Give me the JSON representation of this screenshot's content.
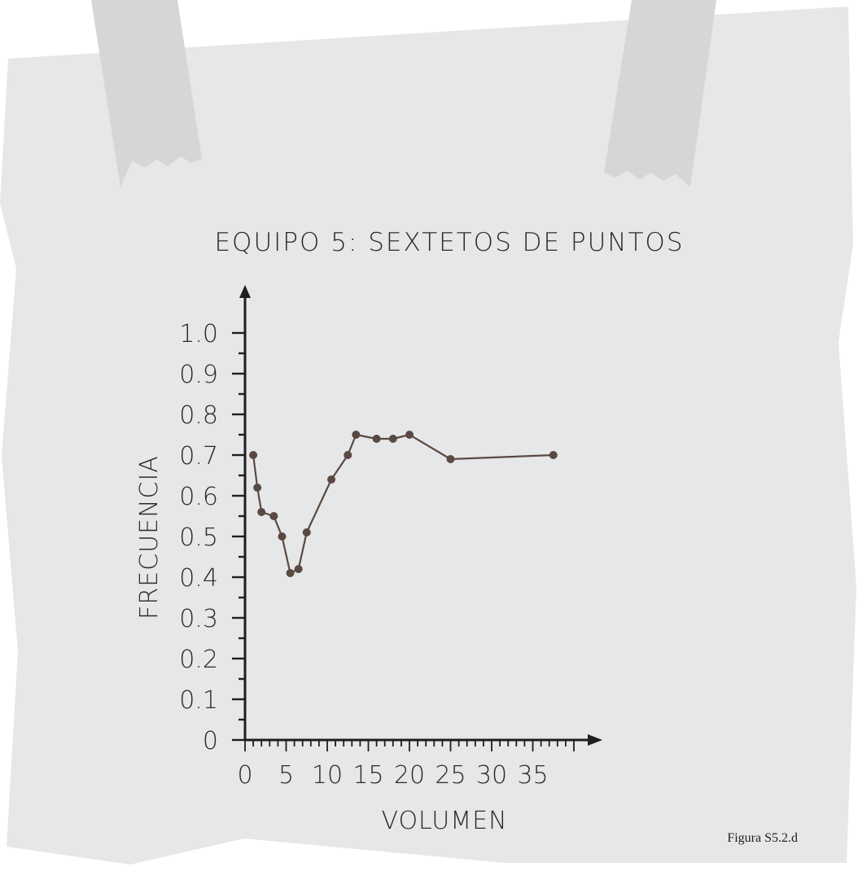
{
  "figure_label": "Figura S5.2.d",
  "colors": {
    "paper": "#e6e7e8",
    "tape": "#d5d6d8",
    "line": "#5a4942",
    "axis": "#1f1f1f"
  },
  "chart_data": {
    "type": "line",
    "title": "EQUIPO 5: SEXTETOS DE PUNTOS",
    "xlabel": "VOLUMEN",
    "ylabel": "FRECUENCIA",
    "x_tick_labels": [
      "0",
      "5",
      "10",
      "15",
      "20",
      "25",
      "30",
      "35"
    ],
    "y_tick_labels": [
      "0",
      "0.1",
      "0.2",
      "0.3",
      "0.4",
      "0.5",
      "0.6",
      "0.7",
      "0.8",
      "0.9",
      "1.0"
    ],
    "grid": false,
    "series": [
      {
        "points": [
          {
            "x": 1,
            "y": 0.7
          },
          {
            "x": 1.5,
            "y": 0.62
          },
          {
            "x": 2,
            "y": 0.56
          },
          {
            "x": 3.5,
            "y": 0.55
          },
          {
            "x": 4.5,
            "y": 0.5
          },
          {
            "x": 5.5,
            "y": 0.41
          },
          {
            "x": 6.5,
            "y": 0.42
          },
          {
            "x": 7.5,
            "y": 0.51
          },
          {
            "x": 10.5,
            "y": 0.64
          },
          {
            "x": 12.5,
            "y": 0.7
          },
          {
            "x": 13.5,
            "y": 0.75
          },
          {
            "x": 16,
            "y": 0.74
          },
          {
            "x": 18,
            "y": 0.74
          },
          {
            "x": 20,
            "y": 0.75
          },
          {
            "x": 25,
            "y": 0.69
          },
          {
            "x": 37.5,
            "y": 0.7
          }
        ]
      }
    ]
  }
}
